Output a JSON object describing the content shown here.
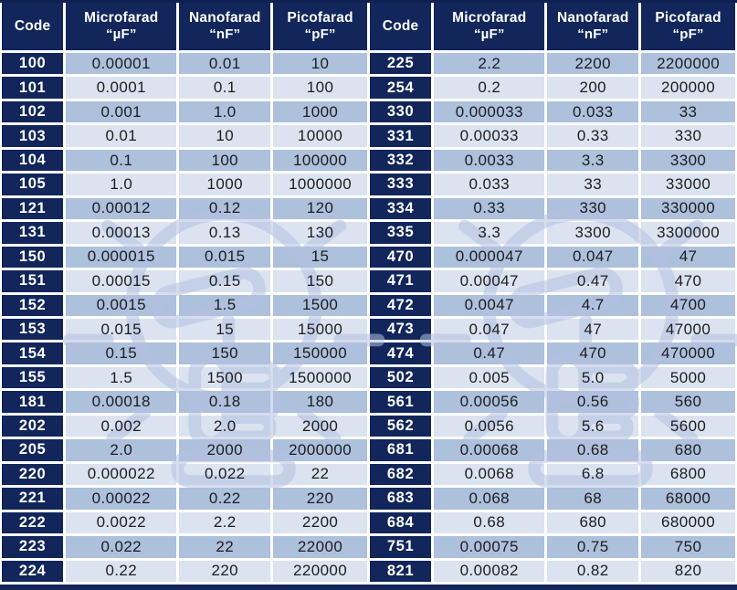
{
  "colors": {
    "navy": "#12265b",
    "row_dark": "#adc0dc",
    "row_light": "#dbe3f0",
    "grid_line": "#ffffff",
    "value_text": "#1d1d1f",
    "header_text": "#ffffff",
    "watermark": "#b3c1e0"
  },
  "header": {
    "cells": [
      {
        "line1": "Code",
        "line2": ""
      },
      {
        "line1": "Microfarad",
        "line2": "“µF”"
      },
      {
        "line1": "Nanofarad",
        "line2": "“nF”"
      },
      {
        "line1": "Picofarad",
        "line2": "“pF”"
      },
      {
        "line1": "Code",
        "line2": ""
      },
      {
        "line1": "Microfarad",
        "line2": "“µF”"
      },
      {
        "line1": "Nanofarad",
        "line2": "“nF”"
      },
      {
        "line1": "Picofarad",
        "line2": "“pF”"
      }
    ]
  },
  "watermark_icon": "lightbulb-hand-icon",
  "chart_data": {
    "type": "table",
    "columns": [
      "Code",
      "Microfarad “µF”",
      "Nanofarad “nF”",
      "Picofarad “pF”",
      "Code",
      "Microfarad “µF”",
      "Nanofarad “nF”",
      "Picofarad “pF”"
    ],
    "left_rows": [
      [
        "100",
        "0.00001",
        "0.01",
        "10"
      ],
      [
        "101",
        "0.0001",
        "0.1",
        "100"
      ],
      [
        "102",
        "0.001",
        "1.0",
        "1000"
      ],
      [
        "103",
        "0.01",
        "10",
        "10000"
      ],
      [
        "104",
        "0.1",
        "100",
        "100000"
      ],
      [
        "105",
        "1.0",
        "1000",
        "1000000"
      ],
      [
        "121",
        "0.00012",
        "0.12",
        "120"
      ],
      [
        "131",
        "0.00013",
        "0.13",
        "130"
      ],
      [
        "150",
        "0.000015",
        "0.015",
        "15"
      ],
      [
        "151",
        "0.00015",
        "0.15",
        "150"
      ],
      [
        "152",
        "0.0015",
        "1.5",
        "1500"
      ],
      [
        "153",
        "0.015",
        "15",
        "15000"
      ],
      [
        "154",
        "0.15",
        "150",
        "150000"
      ],
      [
        "155",
        "1.5",
        "1500",
        "1500000"
      ],
      [
        "181",
        "0.00018",
        "0.18",
        "180"
      ],
      [
        "202",
        "0.002",
        "2.0",
        "2000"
      ],
      [
        "205",
        "2.0",
        "2000",
        "2000000"
      ],
      [
        "220",
        "0.000022",
        "0.022",
        "22"
      ],
      [
        "221",
        "0.00022",
        "0.22",
        "220"
      ],
      [
        "222",
        "0.0022",
        "2.2",
        "2200"
      ],
      [
        "223",
        "0.022",
        "22",
        "22000"
      ],
      [
        "224",
        "0.22",
        "220",
        "220000"
      ]
    ],
    "right_rows": [
      [
        "225",
        "2.2",
        "2200",
        "2200000"
      ],
      [
        "254",
        "0.2",
        "200",
        "200000"
      ],
      [
        "330",
        "0.000033",
        "0.033",
        "33"
      ],
      [
        "331",
        "0.00033",
        "0.33",
        "330"
      ],
      [
        "332",
        "0.0033",
        "3.3",
        "3300"
      ],
      [
        "333",
        "0.033",
        "33",
        "33000"
      ],
      [
        "334",
        "0.33",
        "330",
        "330000"
      ],
      [
        "335",
        "3.3",
        "3300",
        "3300000"
      ],
      [
        "470",
        "0.000047",
        "0.047",
        "47"
      ],
      [
        "471",
        "0.00047",
        "0.47",
        "470"
      ],
      [
        "472",
        "0.0047",
        "4.7",
        "4700"
      ],
      [
        "473",
        "0.047",
        "47",
        "47000"
      ],
      [
        "474",
        "0.47",
        "470",
        "470000"
      ],
      [
        "502",
        "0.005",
        "5.0",
        "5000"
      ],
      [
        "561",
        "0.00056",
        "0.56",
        "560"
      ],
      [
        "562",
        "0.0056",
        "5.6",
        "5600"
      ],
      [
        "681",
        "0.00068",
        "0.68",
        "680"
      ],
      [
        "682",
        "0.0068",
        "6.8",
        "6800"
      ],
      [
        "683",
        "0.068",
        "68",
        "68000"
      ],
      [
        "684",
        "0.68",
        "680",
        "680000"
      ],
      [
        "751",
        "0.00075",
        "0.75",
        "750"
      ],
      [
        "821",
        "0.00082",
        "0.82",
        "820"
      ]
    ]
  }
}
